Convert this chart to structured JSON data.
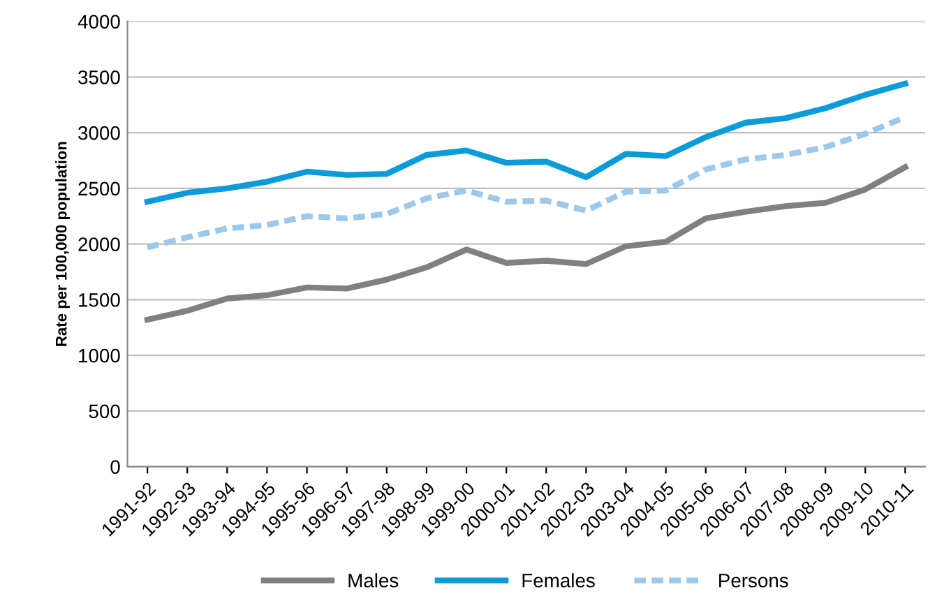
{
  "chart_data": {
    "type": "line",
    "ylabel": "Rate per 100,000 population",
    "categories": [
      "1991-92",
      "1992-93",
      "1993-94",
      "1994-95",
      "1995-96",
      "1996-97",
      "1997-98",
      "1998-99",
      "1999-00",
      "2000-01",
      "2001-02",
      "2002-03",
      "2003-04",
      "2004-05",
      "2005-06",
      "2006-07",
      "2007-08",
      "2008-09",
      "2009-10",
      "2010-11"
    ],
    "series": [
      {
        "name": "Males",
        "color": "#808080",
        "line_style": "solid",
        "values": [
          1320,
          1400,
          1510,
          1540,
          1610,
          1600,
          1680,
          1790,
          1950,
          1830,
          1850,
          1820,
          1980,
          2020,
          2230,
          2290,
          2340,
          2370,
          2490,
          2690
        ]
      },
      {
        "name": "Females",
        "color": "#0b9bd8",
        "line_style": "solid",
        "values": [
          2380,
          2460,
          2500,
          2560,
          2650,
          2620,
          2630,
          2800,
          2840,
          2730,
          2740,
          2600,
          2810,
          2790,
          2960,
          3090,
          3130,
          3220,
          3340,
          3440
        ]
      },
      {
        "name": "Persons",
        "color": "#9cc8ec",
        "line_style": "dashed",
        "values": [
          1970,
          2060,
          2140,
          2170,
          2250,
          2230,
          2270,
          2410,
          2480,
          2380,
          2390,
          2300,
          2470,
          2480,
          2670,
          2760,
          2800,
          2870,
          2990,
          3140
        ]
      }
    ],
    "ylim": [
      0,
      4000
    ],
    "yticks": [
      0,
      500,
      1000,
      1500,
      2000,
      2500,
      3000,
      3500,
      4000
    ],
    "grid": "y",
    "legend": "bottom",
    "marker": "none"
  }
}
